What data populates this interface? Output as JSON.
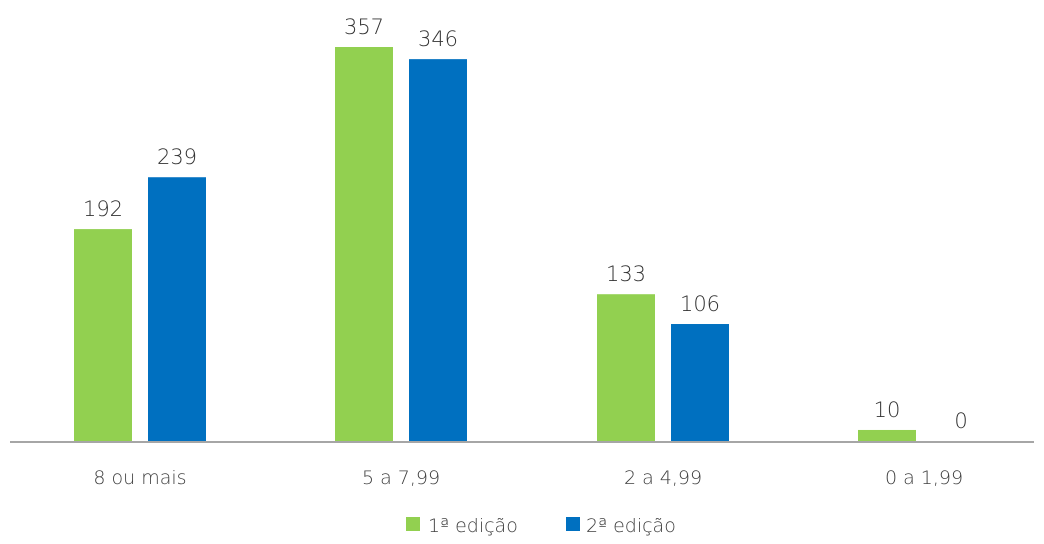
{
  "chart_data": {
    "type": "bar",
    "title": "",
    "xlabel": "",
    "ylabel": "",
    "categories": [
      "8 ou mais",
      "5 a 7,99",
      "2 a 4,99",
      "0 a 1,99"
    ],
    "series": [
      {
        "name": "1ª edição",
        "values": [
          192,
          357,
          133,
          10
        ],
        "color": "#92D050"
      },
      {
        "name": "2ª edição",
        "values": [
          239,
          346,
          106,
          0
        ],
        "color": "#0070C0"
      }
    ],
    "ylim": [
      0,
      357
    ],
    "grid": false,
    "legend": "bottom-center",
    "axis_color": "#A6A6A6"
  }
}
